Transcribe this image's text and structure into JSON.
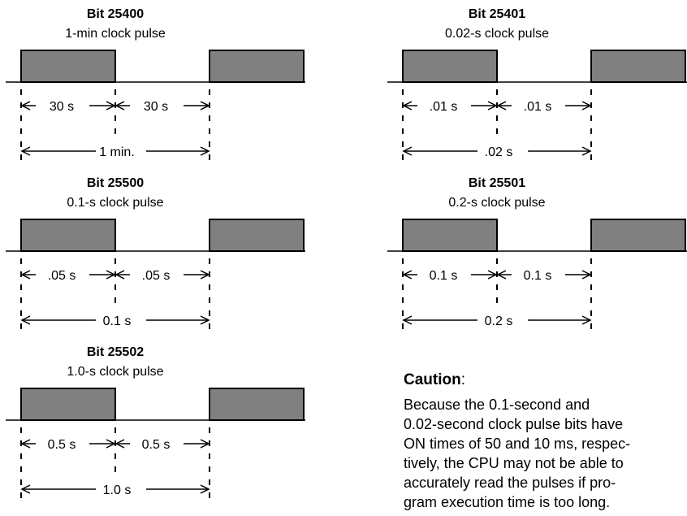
{
  "diagrams": [
    {
      "bit": "Bit 25400",
      "desc": "1-min clock pulse",
      "half1": "30 s",
      "half2": "30 s",
      "period": "1 min."
    },
    {
      "bit": "Bit 25401",
      "desc": "0.02-s clock pulse",
      "half1": ".01 s",
      "half2": ".01 s",
      "period": ".02 s"
    },
    {
      "bit": "Bit 25500",
      "desc": "0.1-s clock pulse",
      "half1": ".05 s",
      "half2": ".05 s",
      "period": "0.1 s"
    },
    {
      "bit": "Bit 25501",
      "desc": "0.2-s clock pulse",
      "half1": "0.1 s",
      "half2": "0.1 s",
      "period": "0.2 s"
    },
    {
      "bit": "Bit 25502",
      "desc": "1.0-s clock pulse",
      "half1": "0.5 s",
      "half2": "0.5 s",
      "period": "1.0 s"
    }
  ],
  "caution": {
    "title": "Caution",
    "body": "Because the 0.1-second and\n0.02-second clock pulse bits have\nON times of 50 and 10 ms, respec-\ntively, the CPU may not be able to\naccurately read the pulses if pro-\ngram execution time is too long."
  }
}
